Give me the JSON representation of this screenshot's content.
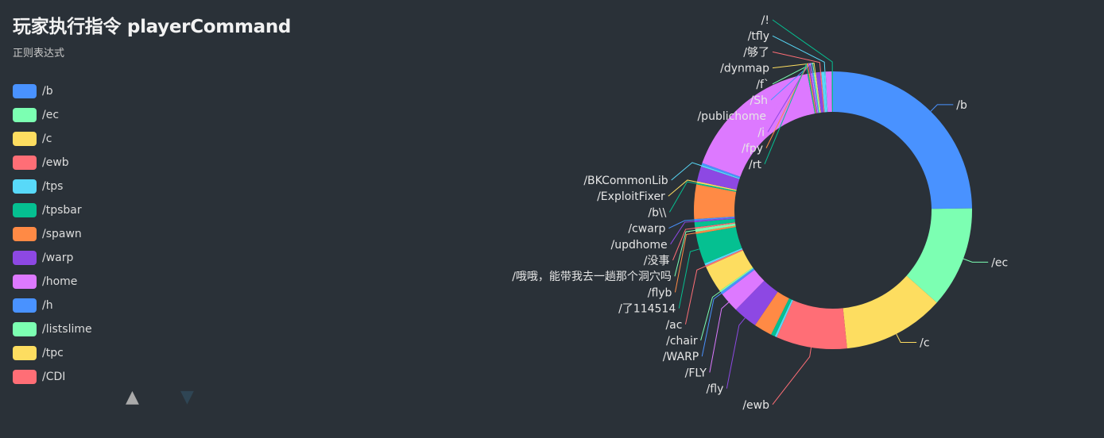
{
  "title": "玩家执行指令 playerCommand",
  "subtitle": "正则表达式",
  "legend": {
    "items": [
      {
        "label": "/b",
        "color": "#4992ff"
      },
      {
        "label": "/ec",
        "color": "#7cffb2"
      },
      {
        "label": "/c",
        "color": "#fddd60"
      },
      {
        "label": "/ewb",
        "color": "#ff6e76"
      },
      {
        "label": "/tps",
        "color": "#58d9f9"
      },
      {
        "label": "/tpsbar",
        "color": "#05c091"
      },
      {
        "label": "/spawn",
        "color": "#ff8a45"
      },
      {
        "label": "/warp",
        "color": "#8d48e3"
      },
      {
        "label": "/home",
        "color": "#dd79ff"
      },
      {
        "label": "/h",
        "color": "#4992ff"
      },
      {
        "label": "/listslime",
        "color": "#7cffb2"
      },
      {
        "label": "/tpc",
        "color": "#fddd60"
      },
      {
        "label": "/CDI",
        "color": "#ff6e76"
      }
    ],
    "pager_up_icon": "▲",
    "pager_down_icon": "▼"
  },
  "chart_data": {
    "type": "pie",
    "donut": true,
    "slices": [
      {
        "label": "/b",
        "value": 2100,
        "color": "#4992ff"
      },
      {
        "label": "/ec",
        "value": 1000,
        "color": "#7cffb2"
      },
      {
        "label": "/c",
        "value": 1000,
        "color": "#fddd60"
      },
      {
        "label": "/ewb",
        "value": 700,
        "color": "#ff6e76"
      },
      {
        "label": "",
        "value": 20,
        "color": "#58d9f9"
      },
      {
        "label": "",
        "value": 40,
        "color": "#05c091"
      },
      {
        "label": "",
        "value": 180,
        "color": "#ff8a45"
      },
      {
        "label": "/fly",
        "value": 240,
        "color": "#8d48e3"
      },
      {
        "label": "/FLY",
        "value": 200,
        "color": "#dd79ff"
      },
      {
        "label": "/WARP",
        "value": 25,
        "color": "#4992ff"
      },
      {
        "label": "/chair",
        "value": 15,
        "color": "#7cffb2"
      },
      {
        "label": "",
        "value": 270,
        "color": "#fddd60"
      },
      {
        "label": "/ac",
        "value": 15,
        "color": "#ff6e76"
      },
      {
        "label": "",
        "value": 20,
        "color": "#58d9f9"
      },
      {
        "label": "/了114514",
        "value": 300,
        "color": "#05c091"
      },
      {
        "label": "/flyb",
        "value": 20,
        "color": "#ff8a45"
      },
      {
        "label": "/哦哦，能带我去一趟那个洞穴吗",
        "value": 30,
        "color": "#7cffb2"
      },
      {
        "label": "/没事",
        "value": 15,
        "color": "#ff6e76"
      },
      {
        "label": "",
        "value": 50,
        "color": "#05c091"
      },
      {
        "label": "/updhome",
        "value": 15,
        "color": "#8d48e3"
      },
      {
        "label": "/cwarp",
        "value": 15,
        "color": "#4992ff"
      },
      {
        "label": "",
        "value": 340,
        "color": "#ff8a45"
      },
      {
        "label": "/b\\\\",
        "value": 15,
        "color": "#05c091"
      },
      {
        "label": "/ExploitFixer",
        "value": 15,
        "color": "#fddd60"
      },
      {
        "label": "",
        "value": 150,
        "color": "#8d48e3"
      },
      {
        "label": "/BKCommonLib",
        "value": 15,
        "color": "#58d9f9"
      },
      {
        "label": "",
        "value": 20,
        "color": "#4992ff"
      },
      {
        "label": "",
        "value": 1400,
        "color": "#dd79ff"
      },
      {
        "label": "/rt",
        "value": 12,
        "color": "#05c091"
      },
      {
        "label": "/fpy",
        "value": 12,
        "color": "#ff8a45"
      },
      {
        "label": "/i",
        "value": 12,
        "color": "#8d48e3"
      },
      {
        "label": "/publichome",
        "value": 12,
        "color": "#dd79ff"
      },
      {
        "label": "/Sh",
        "value": 12,
        "color": "#4992ff"
      },
      {
        "label": "/f`",
        "value": 12,
        "color": "#7cffb2"
      },
      {
        "label": "/dynmap",
        "value": 12,
        "color": "#fddd60"
      },
      {
        "label": "",
        "value": 40,
        "color": "#8d48e3"
      },
      {
        "label": "/够了",
        "value": 12,
        "color": "#ff6e76"
      },
      {
        "label": "",
        "value": 30,
        "color": "#58d9f9"
      },
      {
        "label": "/tfly",
        "value": 12,
        "color": "#58d9f9"
      },
      {
        "label": "",
        "value": 60,
        "color": "#dd79ff"
      },
      {
        "label": "/!",
        "value": 12,
        "color": "#05c091"
      }
    ]
  }
}
